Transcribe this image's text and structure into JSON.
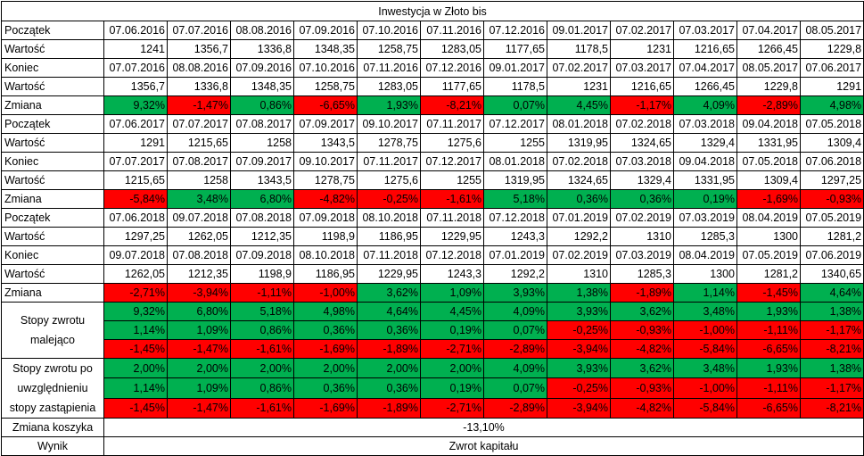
{
  "title": "Inwestycja w Złoto bis",
  "labels": {
    "start": "Początek",
    "value": "Wartość",
    "end": "Koniec",
    "change": "Zmiana",
    "sorted_returns": "Stopy zwrotu malejąco",
    "replacement_returns": "Stopy zwrotu po uwzględnieniu stopy zastąpienia",
    "basket_change": "Zmiana koszyka",
    "result": "Wynik"
  },
  "periods": [
    {
      "start_dates": [
        "07.06.2016",
        "07.07.2016",
        "08.08.2016",
        "07.09.2016",
        "07.10.2016",
        "07.11.2016",
        "07.12.2016",
        "09.01.2017",
        "07.02.2017",
        "07.03.2017",
        "07.04.2017",
        "08.05.2017"
      ],
      "start_values": [
        "1241",
        "1356,7",
        "1336,8",
        "1348,35",
        "1258,75",
        "1283,05",
        "1177,65",
        "1178,5",
        "1231",
        "1216,65",
        "1266,45",
        "1229,8"
      ],
      "end_dates": [
        "07.07.2016",
        "08.08.2016",
        "07.09.2016",
        "07.10.2016",
        "07.11.2016",
        "07.12.2016",
        "09.01.2017",
        "07.02.2017",
        "07.03.2017",
        "07.04.2017",
        "08.05.2017",
        "07.06.2017"
      ],
      "end_values": [
        "1356,7",
        "1336,8",
        "1348,35",
        "1258,75",
        "1283,05",
        "1177,65",
        "1178,5",
        "1231",
        "1216,65",
        "1266,45",
        "1229,8",
        "1291"
      ],
      "changes": [
        "9,32%",
        "-1,47%",
        "0,86%",
        "-6,65%",
        "1,93%",
        "-8,21%",
        "0,07%",
        "4,45%",
        "-1,17%",
        "4,09%",
        "-2,89%",
        "4,98%"
      ],
      "change_colors": [
        "g",
        "r",
        "g",
        "r",
        "g",
        "r",
        "g",
        "g",
        "r",
        "g",
        "r",
        "g"
      ]
    },
    {
      "start_dates": [
        "07.06.2017",
        "07.07.2017",
        "07.08.2017",
        "07.09.2017",
        "09.10.2017",
        "07.11.2017",
        "07.12.2017",
        "08.01.2018",
        "07.02.2018",
        "07.03.2018",
        "09.04.2018",
        "07.05.2018"
      ],
      "start_values": [
        "1291",
        "1215,65",
        "1258",
        "1343,5",
        "1278,75",
        "1275,6",
        "1255",
        "1319,95",
        "1324,65",
        "1329,4",
        "1331,95",
        "1309,4"
      ],
      "end_dates": [
        "07.07.2017",
        "07.08.2017",
        "07.09.2017",
        "09.10.2017",
        "07.11.2017",
        "07.12.2017",
        "08.01.2018",
        "07.02.2018",
        "07.03.2018",
        "09.04.2018",
        "07.05.2018",
        "07.06.2018"
      ],
      "end_values": [
        "1215,65",
        "1258",
        "1343,5",
        "1278,75",
        "1275,6",
        "1255",
        "1319,95",
        "1324,65",
        "1329,4",
        "1331,95",
        "1309,4",
        "1297,25"
      ],
      "changes": [
        "-5,84%",
        "3,48%",
        "6,80%",
        "-4,82%",
        "-0,25%",
        "-1,61%",
        "5,18%",
        "0,36%",
        "0,36%",
        "0,19%",
        "-1,69%",
        "-0,93%"
      ],
      "change_colors": [
        "r",
        "g",
        "g",
        "r",
        "r",
        "r",
        "g",
        "g",
        "g",
        "g",
        "r",
        "r"
      ]
    },
    {
      "start_dates": [
        "07.06.2018",
        "09.07.2018",
        "07.08.2018",
        "07.09.2018",
        "08.10.2018",
        "07.11.2018",
        "07.12.2018",
        "07.01.2019",
        "07.02.2019",
        "07.03.2019",
        "08.04.2019",
        "07.05.2019"
      ],
      "start_values": [
        "1297,25",
        "1262,05",
        "1212,35",
        "1198,9",
        "1186,95",
        "1229,95",
        "1243,3",
        "1292,2",
        "1310",
        "1285,3",
        "1300",
        "1281,2"
      ],
      "end_dates": [
        "09.07.2018",
        "07.08.2018",
        "07.09.2018",
        "08.10.2018",
        "07.11.2018",
        "07.12.2018",
        "07.01.2019",
        "07.02.2019",
        "07.03.2019",
        "08.04.2019",
        "07.05.2019",
        "07.06.2019"
      ],
      "end_values": [
        "1262,05",
        "1212,35",
        "1198,9",
        "1186,95",
        "1229,95",
        "1243,3",
        "1292,2",
        "1310",
        "1285,3",
        "1300",
        "1281,2",
        "1340,65"
      ],
      "changes": [
        "-2,71%",
        "-3,94%",
        "-1,11%",
        "-1,00%",
        "3,62%",
        "1,09%",
        "3,93%",
        "1,38%",
        "-1,89%",
        "1,14%",
        "-1,45%",
        "4,64%"
      ],
      "change_colors": [
        "r",
        "r",
        "r",
        "r",
        "g",
        "g",
        "g",
        "g",
        "r",
        "g",
        "r",
        "g"
      ]
    }
  ],
  "sorted_returns": [
    {
      "values": [
        "9,32%",
        "6,80%",
        "5,18%",
        "4,98%",
        "4,64%",
        "4,45%",
        "4,09%",
        "3,93%",
        "3,62%",
        "3,48%",
        "1,93%",
        "1,38%"
      ],
      "colors": [
        "g",
        "g",
        "g",
        "g",
        "g",
        "g",
        "g",
        "g",
        "g",
        "g",
        "g",
        "g"
      ]
    },
    {
      "values": [
        "1,14%",
        "1,09%",
        "0,86%",
        "0,36%",
        "0,36%",
        "0,19%",
        "0,07%",
        "-0,25%",
        "-0,93%",
        "-1,00%",
        "-1,11%",
        "-1,17%"
      ],
      "colors": [
        "g",
        "g",
        "g",
        "g",
        "g",
        "g",
        "g",
        "r",
        "r",
        "r",
        "r",
        "r"
      ]
    },
    {
      "values": [
        "-1,45%",
        "-1,47%",
        "-1,61%",
        "-1,69%",
        "-1,89%",
        "-2,71%",
        "-2,89%",
        "-3,94%",
        "-4,82%",
        "-5,84%",
        "-6,65%",
        "-8,21%"
      ],
      "colors": [
        "r",
        "r",
        "r",
        "r",
        "r",
        "r",
        "r",
        "r",
        "r",
        "r",
        "r",
        "r"
      ]
    }
  ],
  "replacement_returns": [
    {
      "values": [
        "2,00%",
        "2,00%",
        "2,00%",
        "2,00%",
        "2,00%",
        "2,00%",
        "4,09%",
        "3,93%",
        "3,62%",
        "3,48%",
        "1,93%",
        "1,38%"
      ],
      "colors": [
        "g",
        "g",
        "g",
        "g",
        "g",
        "g",
        "g",
        "g",
        "g",
        "g",
        "g",
        "g"
      ]
    },
    {
      "values": [
        "1,14%",
        "1,09%",
        "0,86%",
        "0,36%",
        "0,36%",
        "0,19%",
        "0,07%",
        "-0,25%",
        "-0,93%",
        "-1,00%",
        "-1,11%",
        "-1,17%"
      ],
      "colors": [
        "g",
        "g",
        "g",
        "g",
        "g",
        "g",
        "g",
        "r",
        "r",
        "r",
        "r",
        "r"
      ]
    },
    {
      "values": [
        "-1,45%",
        "-1,47%",
        "-1,61%",
        "-1,69%",
        "-1,89%",
        "-2,71%",
        "-2,89%",
        "-3,94%",
        "-4,82%",
        "-5,84%",
        "-6,65%",
        "-8,21%"
      ],
      "colors": [
        "r",
        "r",
        "r",
        "r",
        "r",
        "r",
        "r",
        "r",
        "r",
        "r",
        "r",
        "r"
      ]
    }
  ],
  "basket_change": "-13,10%",
  "result": "Zwrot kapitału",
  "colors": {
    "positive": "#00b050",
    "negative": "#ff0000"
  }
}
